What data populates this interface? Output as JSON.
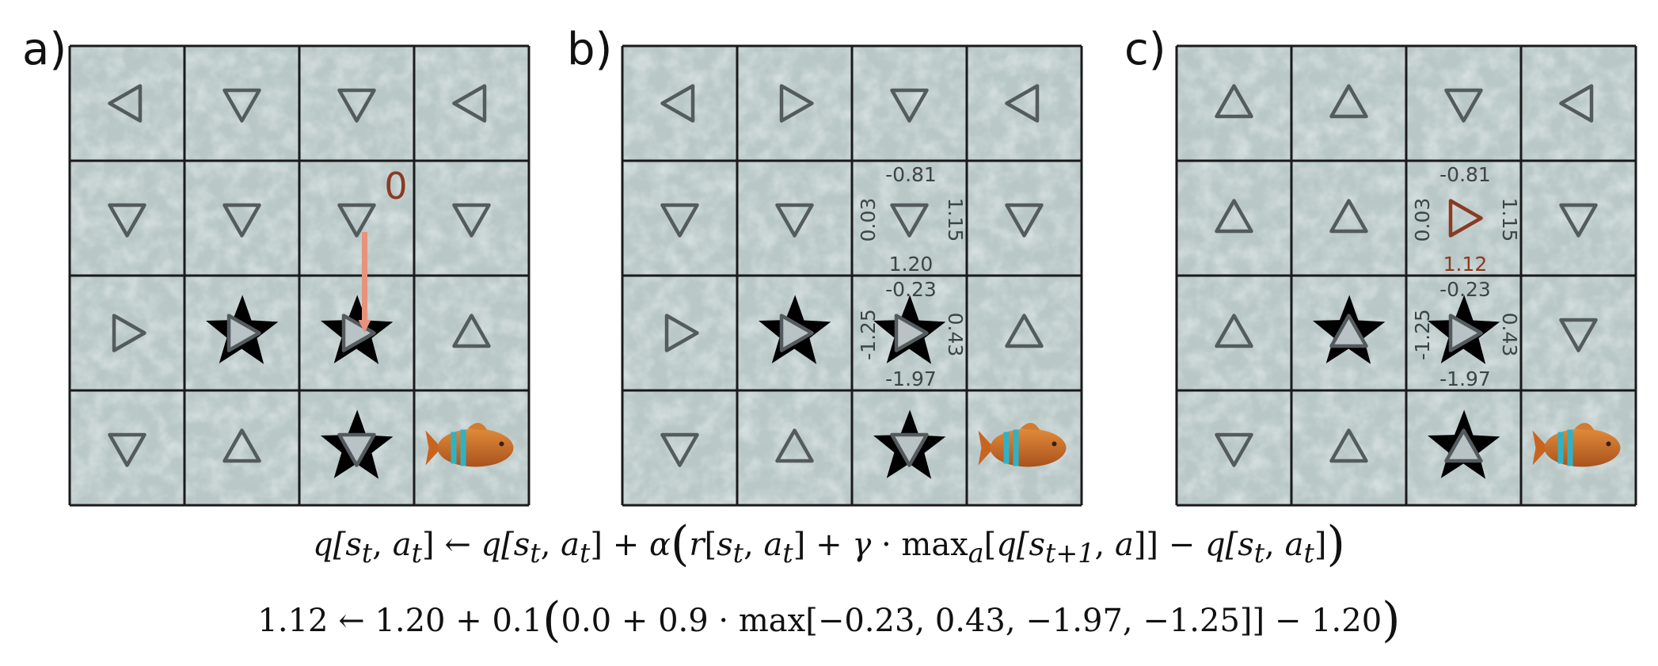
{
  "panels": [
    {
      "label": "a)",
      "policy": [
        [
          "left",
          "down",
          "down",
          "left"
        ],
        [
          "down",
          "down",
          "down",
          "down"
        ],
        [
          "right",
          "right",
          "right",
          "up"
        ],
        [
          "down",
          "up",
          "down",
          "fish"
        ]
      ],
      "holes": [
        [
          2,
          1
        ],
        [
          2,
          2
        ],
        [
          3,
          2
        ]
      ],
      "reward": {
        "row": 1,
        "col": 2,
        "text": "0"
      },
      "arrow": {
        "from_row": 1,
        "to_row": 2,
        "col": 2
      },
      "q_values": []
    },
    {
      "label": "b)",
      "policy": [
        [
          "left",
          "right",
          "down",
          "left"
        ],
        [
          "down",
          "down",
          "down",
          "down"
        ],
        [
          "right",
          "right",
          "right",
          "up"
        ],
        [
          "down",
          "up",
          "down",
          "fish"
        ]
      ],
      "holes": [
        [
          2,
          1
        ],
        [
          2,
          2
        ],
        [
          3,
          2
        ]
      ],
      "q_values": [
        {
          "row": 1,
          "col": 2,
          "up": "-0.81",
          "left": "0.03",
          "right": "1.15",
          "down": "1.20",
          "down_highlight": false
        },
        {
          "row": 2,
          "col": 2,
          "up": "-0.23",
          "left": "-1.25",
          "right": "0.43",
          "down": "-1.97",
          "down_highlight": false
        }
      ]
    },
    {
      "label": "c)",
      "policy": [
        [
          "up",
          "up",
          "down",
          "left"
        ],
        [
          "up",
          "up",
          "right",
          "down"
        ],
        [
          "up",
          "up",
          "right",
          "down"
        ],
        [
          "down",
          "up",
          "up",
          "fish"
        ]
      ],
      "holes": [
        [
          2,
          1
        ],
        [
          2,
          2
        ],
        [
          3,
          2
        ]
      ],
      "highlight_cell": {
        "row": 1,
        "col": 2
      },
      "q_values": [
        {
          "row": 1,
          "col": 2,
          "up": "-0.81",
          "left": "0.03",
          "right": "1.15",
          "down": "1.12",
          "down_highlight": true
        },
        {
          "row": 2,
          "col": 2,
          "up": "-0.23",
          "left": "-1.25",
          "right": "0.43",
          "down": "-1.97",
          "down_highlight": false
        }
      ]
    }
  ],
  "colors": {
    "ice": "#b9c7c7",
    "grid": "#1a1a1a",
    "arrow_stroke": "#545b5f",
    "highlight": "#8b3a22",
    "move_arrow": "#e8927a",
    "text": "#3c4447"
  },
  "equations": {
    "line1": {
      "lhs": "q[s",
      "t": "t",
      "a": "a",
      "larrow": "←",
      "plus1": "+",
      "alpha": "α",
      "r": "r",
      "gamma": "γ",
      "cdot": "·",
      "max": "max",
      "t1": "t+1",
      "minus": "−"
    },
    "line2": {
      "new_value": "1.12",
      "larrow": "←",
      "old_value": "1.20",
      "plus": "+",
      "lr": "0.1",
      "reward": "0.0",
      "discount": "0.9",
      "cdot": "·",
      "max": "max",
      "list": "−0.23, 0.43, −1.97, −1.25",
      "minus": "−",
      "tail": "1.20"
    }
  }
}
